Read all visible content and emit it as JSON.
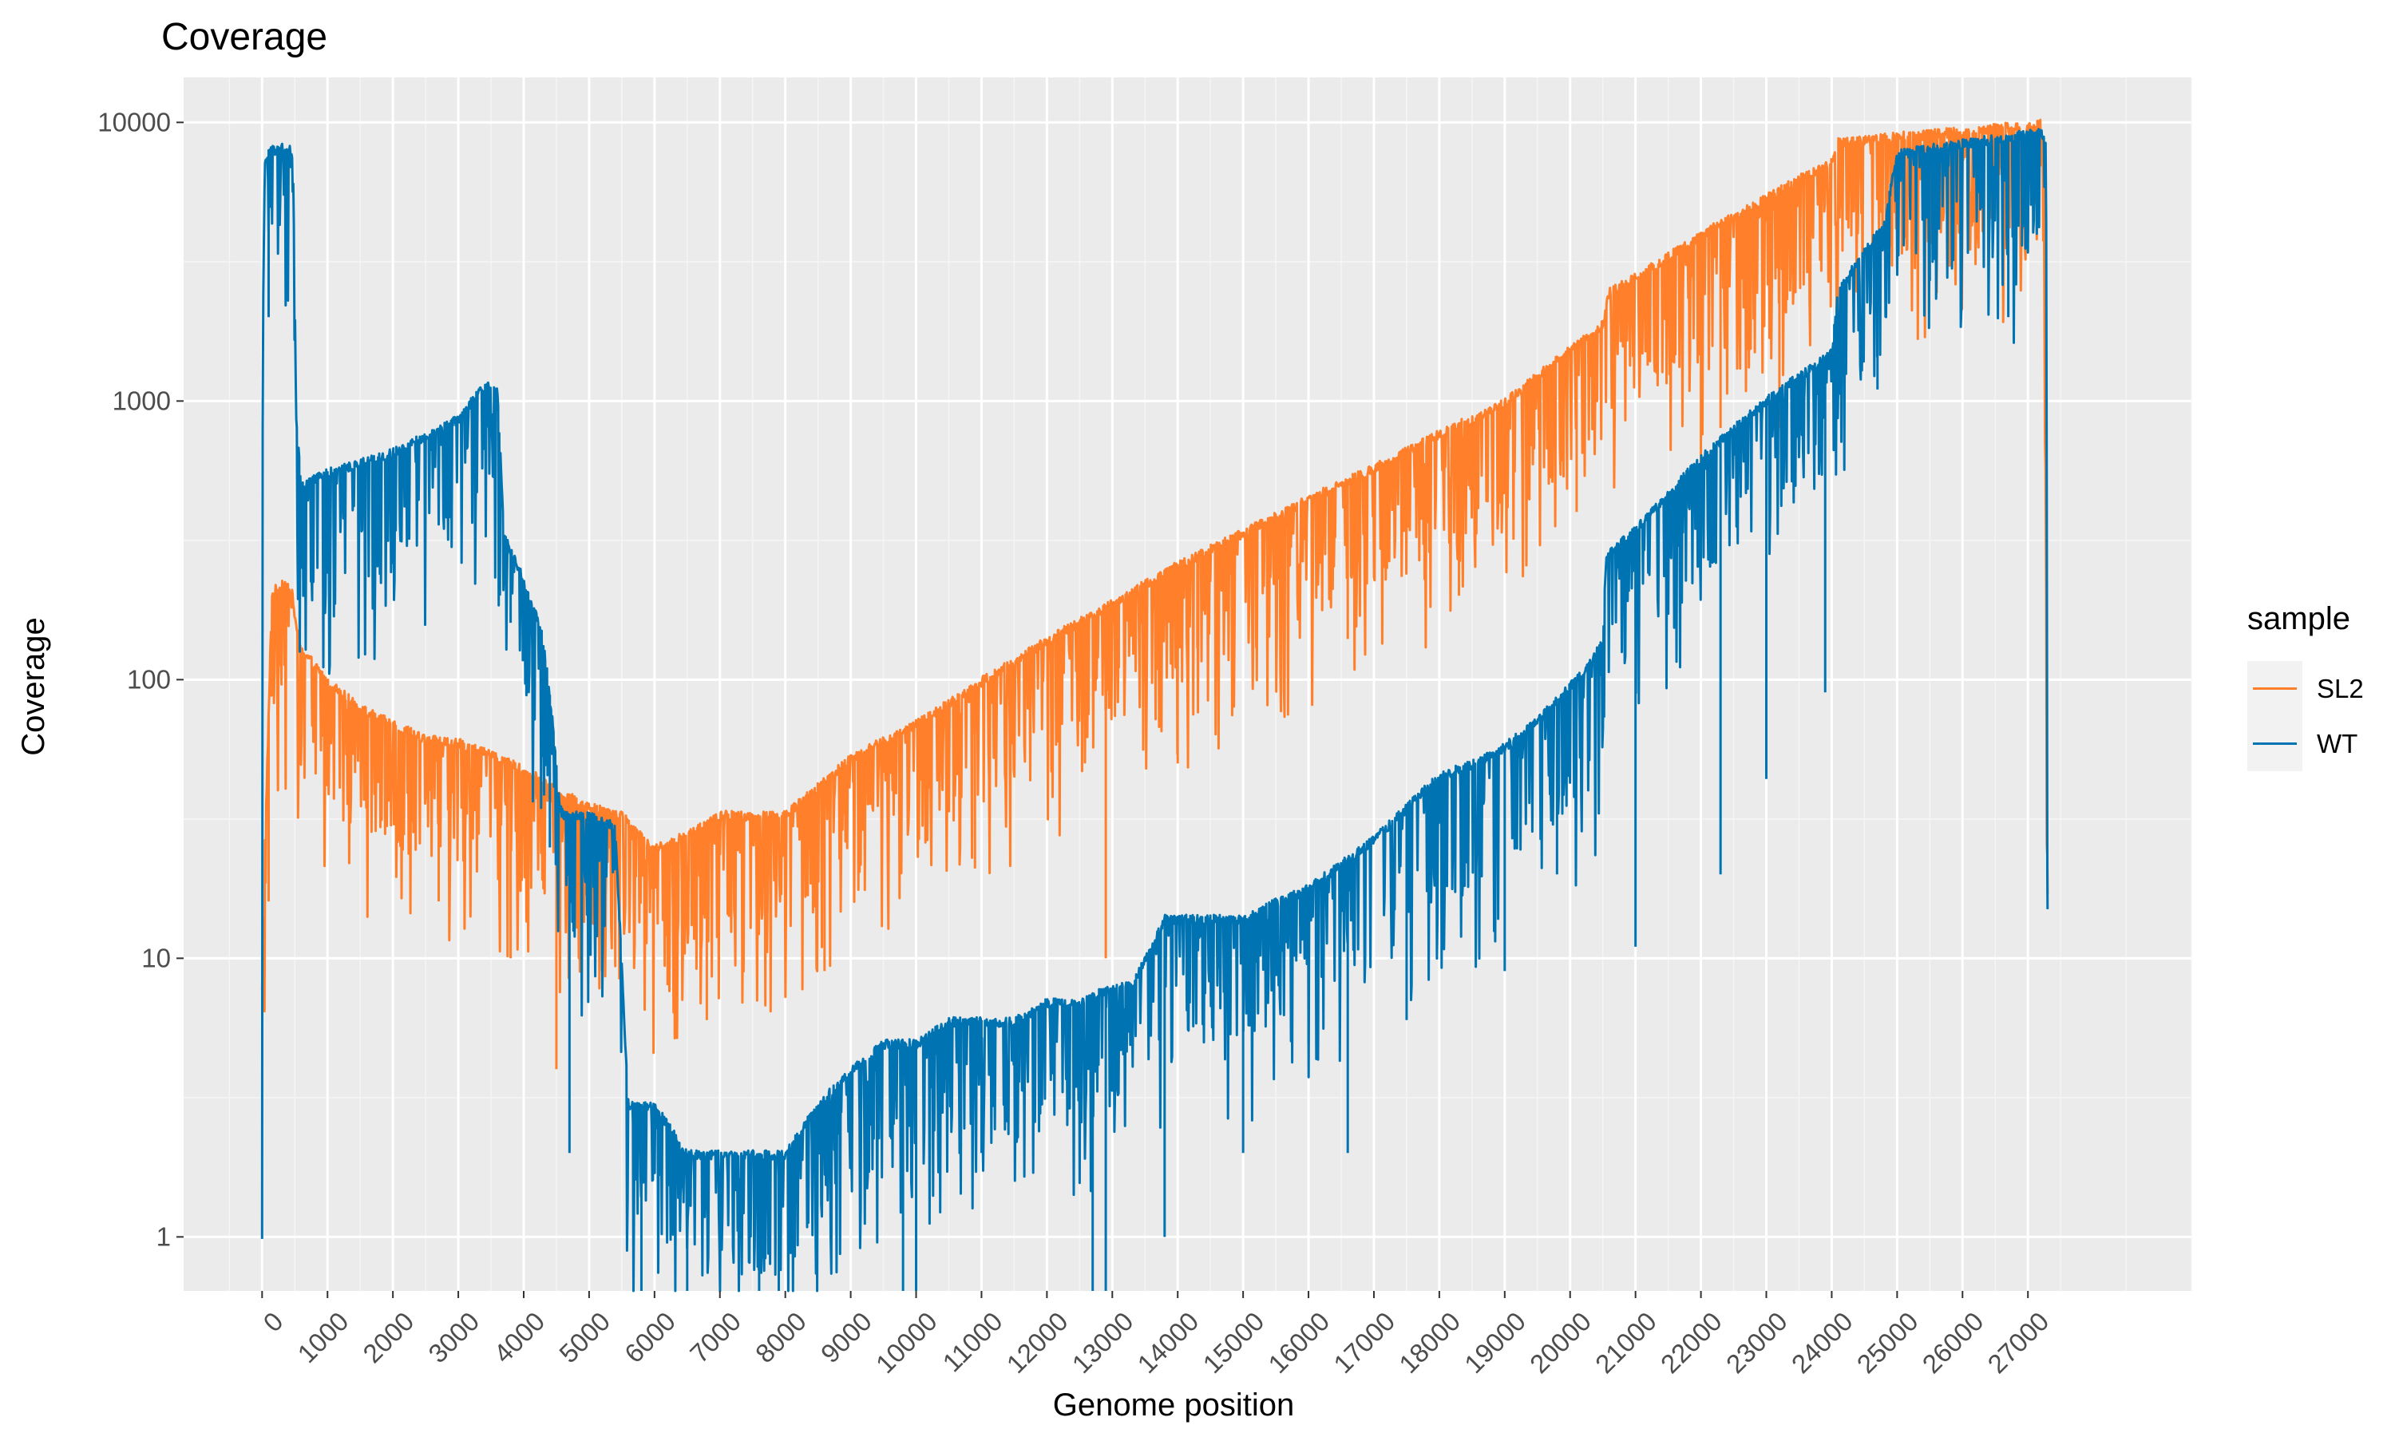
{
  "chart_data": {
    "type": "line",
    "title": "Coverage",
    "xlabel": "Genome position",
    "ylabel": "Coverage",
    "yscale": "log10",
    "xlim": [
      -1200,
      29500
    ],
    "ylim": [
      0.64,
      14500
    ],
    "x_ticks": [
      0,
      1000,
      2000,
      3000,
      4000,
      5000,
      6000,
      7000,
      8000,
      9000,
      10000,
      11000,
      12000,
      13000,
      14000,
      15000,
      16000,
      17000,
      18000,
      19000,
      20000,
      21000,
      22000,
      23000,
      24000,
      25000,
      26000,
      27000
    ],
    "x_tick_labels": [
      "0",
      "1000",
      "2000",
      "3000",
      "4000",
      "5000",
      "6000",
      "7000",
      "8000",
      "9000",
      "10000",
      "11000",
      "12000",
      "13000",
      "14000",
      "15000",
      "16000",
      "17000",
      "18000",
      "19000",
      "20000",
      "21000",
      "22000",
      "23000",
      "24000",
      "25000",
      "26000",
      "27000"
    ],
    "y_ticks": [
      1,
      10,
      100,
      1000,
      10000
    ],
    "y_tick_labels": [
      "1",
      "10",
      "100",
      "1000",
      "10000"
    ],
    "legend": {
      "title": "sample",
      "position": "right",
      "entries": [
        "SL2",
        "WT"
      ]
    },
    "series": [
      {
        "name": "SL2",
        "color": "#FF7F2A",
        "x": [
          0,
          30,
          80,
          150,
          250,
          350,
          450,
          500,
          600,
          800,
          1000,
          1500,
          2000,
          2500,
          3000,
          3500,
          4000,
          4300,
          4500,
          5000,
          5500,
          6000,
          6500,
          7000,
          7500,
          8000,
          9000,
          10000,
          11000,
          12000,
          13000,
          14000,
          15000,
          16000,
          17000,
          18000,
          19000,
          20000,
          20500,
          20600,
          21000,
          22000,
          23000,
          24000,
          24100,
          25000,
          26000,
          27000,
          27200,
          27250,
          27300
        ],
        "values": [
          8,
          20,
          50,
          205,
          220,
          225,
          215,
          170,
          130,
          115,
          100,
          80,
          70,
          62,
          60,
          55,
          48,
          44,
          40,
          36,
          33,
          25,
          28,
          33,
          33,
          33,
          53,
          70,
          100,
          140,
          190,
          260,
          340,
          450,
          580,
          770,
          1000,
          1550,
          1900,
          2500,
          2800,
          4000,
          5400,
          7400,
          8600,
          9000,
          9400,
          9900,
          10000,
          6000,
          17
        ],
        "dips": [
          [
            100,
            16
          ],
          [
            2700,
            16
          ],
          [
            3800,
            10
          ],
          [
            4500,
            4
          ],
          [
            6200,
            8
          ],
          [
            6800,
            6
          ],
          [
            8600,
            9
          ],
          [
            10900,
            21
          ],
          [
            12900,
            10
          ],
          [
            13100,
            110
          ],
          [
            14000,
            50
          ],
          [
            14300,
            130
          ],
          [
            15200,
            130
          ],
          [
            16600,
            140
          ],
          [
            17200,
            250
          ],
          [
            18300,
            200
          ],
          [
            20100,
            400
          ],
          [
            22000,
            550
          ],
          [
            22300,
            800
          ],
          [
            23200,
            800
          ],
          [
            25000,
            3000
          ]
        ]
      },
      {
        "name": "WT",
        "color": "#0073B2",
        "x": [
          0,
          10,
          40,
          100,
          300,
          450,
          480,
          520,
          600,
          1000,
          2000,
          3000,
          3300,
          3500,
          3600,
          3700,
          4000,
          4200,
          4300,
          4450,
          4550,
          4620,
          4700,
          5000,
          5400,
          5600,
          6000,
          6500,
          7000,
          7500,
          8000,
          8500,
          9000,
          9500,
          10000,
          10500,
          11000,
          11500,
          12000,
          12500,
          13000,
          13300,
          13800,
          14500,
          15000,
          15500,
          16000,
          16500,
          17000,
          17500,
          18000,
          18500,
          19000,
          19500,
          20000,
          20300,
          20500,
          20550,
          21000,
          22000,
          23000,
          24000,
          24100,
          24500,
          24800,
          25000,
          26000,
          27000,
          27200,
          27280,
          27300
        ],
        "values": [
          1,
          1700,
          7000,
          8000,
          8200,
          8000,
          6000,
          900,
          500,
          560,
          660,
          870,
          1080,
          1180,
          1100,
          330,
          230,
          170,
          140,
          70,
          35,
          33,
          33,
          33,
          30,
          3,
          3,
          2,
          2,
          2,
          2,
          3,
          4,
          5,
          5,
          6,
          6,
          6,
          7,
          7,
          8,
          8,
          14,
          14,
          14,
          16,
          18,
          22,
          27,
          35,
          46,
          50,
          58,
          72,
          96,
          115,
          140,
          280,
          350,
          630,
          1020,
          1500,
          2500,
          3500,
          4300,
          7800,
          8500,
          9200,
          9400,
          8200,
          15
        ],
        "dips": [
          [
            100,
            2000
          ],
          [
            600,
            250
          ],
          [
            1000,
            240
          ],
          [
            2000,
            260
          ],
          [
            3800,
            160
          ],
          [
            4400,
            25
          ],
          [
            4700,
            2
          ],
          [
            5200,
            9
          ],
          [
            5800,
            0.6
          ],
          [
            6500,
            0.6
          ],
          [
            7600,
            0.6
          ],
          [
            7900,
            0.6
          ],
          [
            9800,
            0.6
          ],
          [
            10000,
            0.6
          ],
          [
            11000,
            2
          ],
          [
            12700,
            0.6
          ],
          [
            12900,
            0.6
          ],
          [
            13800,
            1
          ],
          [
            15000,
            2
          ],
          [
            16000,
            5
          ],
          [
            16600,
            2
          ],
          [
            17500,
            6
          ],
          [
            19000,
            9
          ],
          [
            19800,
            20
          ],
          [
            21000,
            11
          ],
          [
            22300,
            20
          ],
          [
            23000,
            44
          ],
          [
            23900,
            90
          ],
          [
            24700,
            1100
          ],
          [
            25500,
            2700
          ],
          [
            26700,
            2000
          ]
        ]
      }
    ]
  }
}
